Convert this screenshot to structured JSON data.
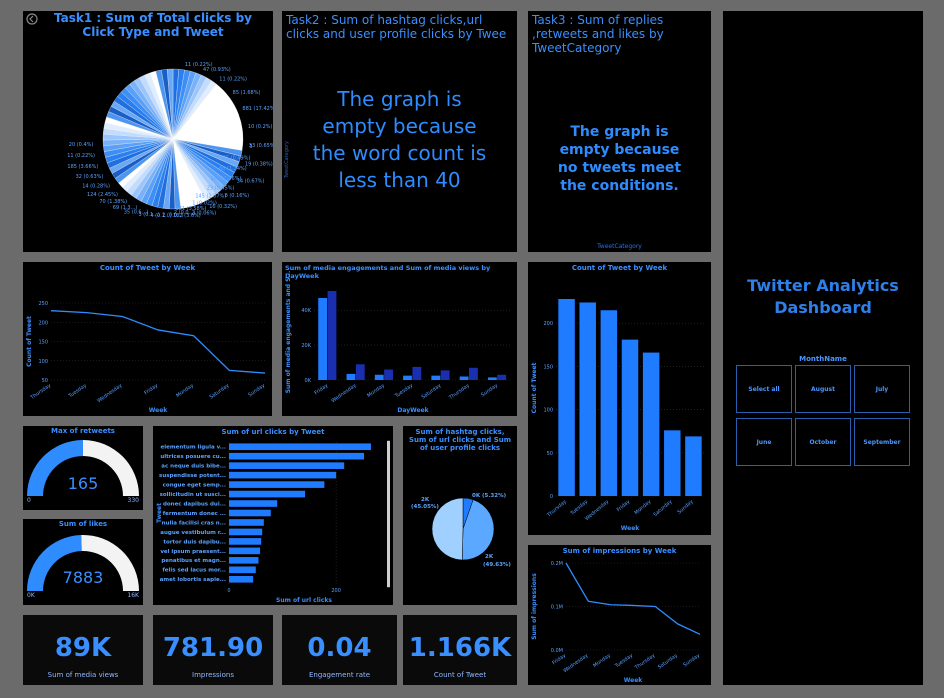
{
  "task1": {
    "title": "Task1 : Sum of Total clicks by Click Type and Tweet",
    "labels_left": [
      "3",
      "25 (0.49%)",
      "68 (1.34%)",
      "104 (2.06%)",
      "23 (0.45%)",
      "145 (2.87%)",
      "1 (0.02%)",
      "181 (3.58%)",
      "2 (0.0...)",
      "2 (0.0...)",
      "4 (0.1...)",
      "3 (0.1...)",
      "35 (0.6...)",
      "69 (1.3...)",
      "70 (1.38%)",
      "124 (2.45%)",
      "14 (0.28%)",
      "32 (0.63%)",
      "185 (3.66%)",
      "11 (0.22%)",
      "20 (0.4%)"
    ],
    "labels_right": [
      "11 (0.22%)",
      "47 (0.93%)",
      "11 (0.22%)",
      "85 (1.68%)",
      "881 (17.42%)",
      "10 (0.2%)",
      "33 (0.65%)",
      "19 (0.38%)",
      "34 (0.67%)",
      "8 (0.16%)",
      "16 (0.32%)",
      "3 (0.06%)",
      "182 (3.6%)"
    ]
  },
  "task2": {
    "title": "Task2 : Sum of hashtag clicks,url clicks and user profile clicks by Twee",
    "axis_label": "TweetCategory",
    "message": "The graph is empty because the word count is less than 40"
  },
  "task3": {
    "title": "Task3 : Sum of replies ,retweets and likes by TweetCategory",
    "message": "The graph is empty because no tweets meet the conditions.",
    "axis_label": "TweetCategory"
  },
  "dashboard": {
    "title": "Twitter Analytics Dashboard",
    "slicer_title": "MonthName",
    "slicer_options": [
      "Select all",
      "August",
      "July",
      "June",
      "October",
      "September"
    ]
  },
  "line_week": {
    "title": "Count of Tweet by Week",
    "ylabel": "Count of Tweet",
    "xlabel": "Week",
    "yticks": [
      "250",
      "200",
      "150",
      "100",
      "50"
    ],
    "chart_data": {
      "type": "line",
      "categories": [
        "Thursday",
        "Tuesday",
        "Wednesday",
        "Friday",
        "Monday",
        "Saturday",
        "Sunday"
      ],
      "values": [
        230,
        225,
        215,
        180,
        165,
        75,
        68
      ],
      "ylim": [
        50,
        250
      ]
    }
  },
  "media_bar": {
    "title": "Sum of media engagements and Sum of media views by DayWeek",
    "ylabel": "Sum of media engagements and S...",
    "xlabel": "DayWeek",
    "yticks": [
      "40K",
      "20K",
      "0K"
    ],
    "colors": [
      "#1f7bff",
      "#1a2fb0"
    ],
    "chart_data": {
      "type": "bar",
      "categories": [
        "Friday",
        "Wednesday",
        "Monday",
        "Tuesday",
        "Saturday",
        "Thursday",
        "Sunday"
      ],
      "series": [
        {
          "values": [
            47000,
            3500,
            3000,
            2500,
            2500,
            2000,
            1500
          ]
        },
        {
          "values": [
            51000,
            9000,
            6000,
            7500,
            5500,
            7000,
            3000
          ]
        }
      ],
      "ylim": [
        0,
        55000
      ]
    }
  },
  "bar_week": {
    "title": "Count of Tweet by Week",
    "ylabel": "Count of Tweet",
    "xlabel": "Week",
    "yticks": [
      "200",
      "150",
      "100",
      "50",
      "0"
    ],
    "chart_data": {
      "type": "bar",
      "categories": [
        "Thursday",
        "Tuesday",
        "Wednesday",
        "Friday",
        "Monday",
        "Saturday",
        "Sunday"
      ],
      "values": [
        228,
        224,
        215,
        181,
        166,
        76,
        69
      ],
      "ylim": [
        0,
        250
      ]
    }
  },
  "gauge_retweets": {
    "title": "Max of retweets",
    "value": "165",
    "min": "0",
    "max": "330",
    "fraction": 0.5
  },
  "gauge_likes": {
    "title": "Sum of likes",
    "value": "7883",
    "min": "0K",
    "max": "16K",
    "fraction": 0.49
  },
  "url_bar": {
    "title": "Sum of url clicks by Tweet",
    "ylabel": "Tweet",
    "xlabel": "Sum of url clicks",
    "xticks": [
      "0",
      "200"
    ],
    "chart_data": {
      "type": "bar",
      "categories": [
        "elementum ligula v...",
        "ultrices posuere cu...",
        "ac neque duis bibe...",
        "suspendisse potent...",
        "congue eget semp...",
        "sollicitudin ut susci...",
        "donec dapibus dui...",
        "fermentum donec ...",
        "nulla facilisi cras n...",
        "augue vestibulum r...",
        "tortor duis dapibu...",
        "vel ipsum praesent...",
        "penatibus et magn...",
        "felis sed lacus mor...",
        "amet lobortis sapie..."
      ],
      "values": [
        265,
        252,
        215,
        200,
        178,
        142,
        90,
        78,
        65,
        62,
        60,
        58,
        55,
        50,
        45
      ],
      "xlim": [
        0,
        280
      ]
    }
  },
  "pie_clicks": {
    "title": "Sum of hashtag clicks, Sum of url clicks and Sum of user profile clicks",
    "label_a": "0K (5.32%)",
    "label_b": "2K (45.05%)",
    "label_c": "2K (49.63%)",
    "colors": [
      "#1f7bff",
      "#5aa8ff",
      "#9fd0ff"
    ],
    "chart_data": {
      "type": "pie",
      "values": [
        5.32,
        45.05,
        49.63
      ]
    }
  },
  "impressions_line": {
    "title": "Sum of impressions by Week",
    "ylabel": "Sum of impressions",
    "xlabel": "Week",
    "yticks": [
      "0.2M",
      "0.1M",
      "0.0M"
    ],
    "chart_data": {
      "type": "line",
      "categories": [
        "Friday",
        "Wednesday",
        "Monday",
        "Tuesday",
        "Thursday",
        "Saturday",
        "Sunday"
      ],
      "values": [
        250000,
        140000,
        130000,
        128000,
        125000,
        75000,
        45000
      ],
      "ylim": [
        0,
        250000
      ]
    }
  },
  "kpis": [
    {
      "value": "89K",
      "label": "Sum of media views"
    },
    {
      "value": "781.90",
      "label": "Impressions"
    },
    {
      "value": "0.04",
      "label": "Engagement rate"
    },
    {
      "value": "1.166K",
      "label": "Count of Tweet"
    }
  ]
}
